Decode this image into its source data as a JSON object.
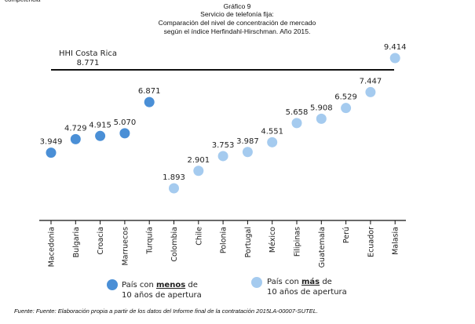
{
  "header": {
    "cut_text": "competencia",
    "title_lines": [
      "Gráfico 9",
      "Servicio de telefonía fija:",
      "Comparación del nivel de concentración de mercado",
      "según el índice Herfindahl-Hirschman.  Año 2015."
    ]
  },
  "chart_data": {
    "type": "scatter",
    "title": "Servicio de telefonía fija: Comparación del nivel de concentración de mercado según el índice Herfindahl-Hirschman.  Año 2015.",
    "categories": [
      "Macedonia",
      "Bulgaria",
      "Croacia",
      "Marruecos",
      "Turquía",
      "Colombia",
      "Chile",
      "Polonia",
      "Portugal",
      "México",
      "Filipinas",
      "Guatemala",
      "Perú",
      "Ecuador",
      "Malasia"
    ],
    "values": [
      3949,
      4729,
      4915,
      5070,
      6871,
      1893,
      2901,
      3753,
      3987,
      4551,
      5658,
      5908,
      6529,
      7447,
      9414
    ],
    "value_labels": [
      "3.949",
      "4.729",
      "4.915",
      "5.070",
      "6.871",
      "1.893",
      "2.901",
      "3.753",
      "3.987",
      "4.551",
      "5.658",
      "5.908",
      "6.529",
      "7.447",
      "9.414"
    ],
    "groups": [
      "less",
      "less",
      "less",
      "less",
      "less",
      "more",
      "more",
      "more",
      "more",
      "more",
      "more",
      "more",
      "more",
      "more",
      "more"
    ],
    "reference_line": {
      "label_line1": "HHI Costa Rica",
      "label_line2": "8.771",
      "value": 8771
    },
    "ylim": [
      0,
      10000
    ],
    "grid": false,
    "colors": {
      "less": "#4a8fd6",
      "more": "#a5cbef",
      "line": "#111111"
    },
    "legend": {
      "position": "bottom",
      "items": [
        {
          "group": "less",
          "prefix": "País con ",
          "emphasis": "menos",
          "suffix": " de",
          "line2": "10 años de apertura"
        },
        {
          "group": "more",
          "prefix": "País con ",
          "emphasis": "más",
          "suffix": " de",
          "line2": "10 años de apertura"
        }
      ]
    }
  },
  "footer": {
    "source": "Fuente: Fuente: Elaboración propia a partir de los datos del Informe final de la contratación 2015LA-00007-SUTEL."
  }
}
